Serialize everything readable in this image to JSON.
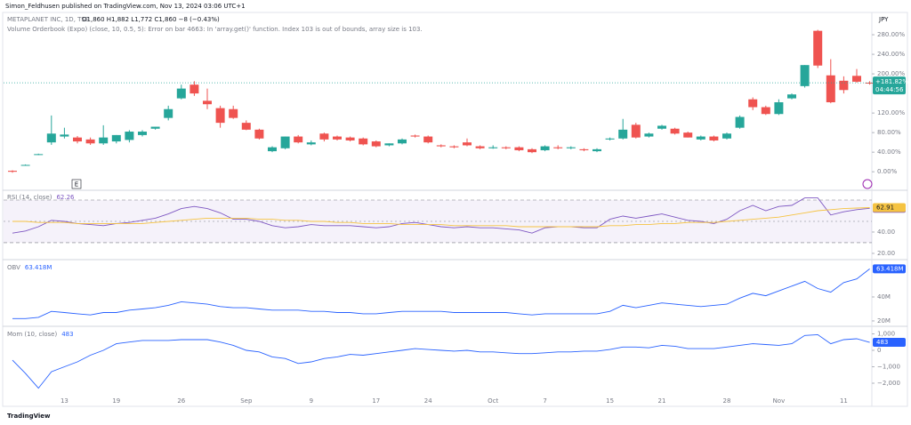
{
  "header": {
    "publisher": "Simon_Feldhusen published on TradingView.com, Nov 13, 2024 03:06 UTC+1",
    "symbol": "METAPLANET INC, 1D, TSE",
    "ohlc": "O1,860 H1,882 L1,772 C1,860 −8 (−0.43%)",
    "indicator_error": "Volume Orderbook (Expo) (close, 10, 0.5, 5): Error on bar 4663: In 'array.get()' function. Index 103 is out of bounds, array size is 103.",
    "currency": "JPY",
    "earnings_marker": "E"
  },
  "chart_data": [
    {
      "type": "candlestick",
      "up_color": "#26a69a",
      "down_color": "#ef5350",
      "categories": [
        null,
        null,
        null,
        null,
        "13",
        null,
        null,
        null,
        "19",
        null,
        null,
        null,
        null,
        "26",
        null,
        null,
        null,
        null,
        "Sep",
        null,
        null,
        null,
        null,
        "9",
        null,
        null,
        null,
        null,
        "17",
        null,
        null,
        null,
        "24",
        null,
        null,
        null,
        null,
        "Oct",
        null,
        null,
        null,
        "7",
        null,
        null,
        null,
        null,
        "15",
        null,
        null,
        null,
        "21",
        null,
        null,
        null,
        null,
        "28",
        null,
        null,
        null,
        "Nov",
        null,
        null,
        null,
        null,
        "11",
        null,
        null
      ],
      "open": [
        2,
        14,
        35,
        60,
        72,
        70,
        66,
        58,
        62,
        65,
        75,
        88,
        110,
        150,
        178,
        145,
        130,
        128,
        100,
        86,
        42,
        48,
        72,
        56,
        78,
        72,
        70,
        68,
        62,
        54,
        58,
        74,
        72,
        54,
        52,
        60,
        52,
        48,
        50,
        50,
        46,
        44,
        50,
        48,
        46,
        42,
        66,
        68,
        96,
        72,
        88,
        88,
        80,
        66,
        72,
        68,
        90,
        148,
        132,
        118,
        150,
        175,
        288,
        197,
        186,
        196,
        182
      ],
      "high": [
        3,
        15,
        37,
        115,
        90,
        73,
        70,
        95,
        75,
        85,
        85,
        92,
        135,
        178,
        185,
        170,
        135,
        135,
        105,
        88,
        52,
        72,
        75,
        64,
        80,
        74,
        72,
        70,
        64,
        58,
        68,
        76,
        74,
        56,
        54,
        68,
        54,
        54,
        52,
        52,
        48,
        54,
        54,
        52,
        48,
        48,
        70,
        108,
        100,
        80,
        96,
        90,
        82,
        74,
        74,
        80,
        115,
        152,
        135,
        148,
        160,
        218,
        290,
        230,
        195,
        210,
        185
      ],
      "low": [
        -2,
        13,
        34,
        55,
        68,
        58,
        55,
        55,
        58,
        60,
        72,
        86,
        105,
        148,
        155,
        128,
        90,
        108,
        85,
        66,
        40,
        46,
        58,
        54,
        62,
        64,
        62,
        54,
        50,
        52,
        56,
        70,
        58,
        50,
        48,
        52,
        46,
        47,
        46,
        42,
        38,
        42,
        46,
        46,
        42,
        40,
        64,
        66,
        68,
        70,
        86,
        76,
        70,
        64,
        62,
        66,
        88,
        126,
        116,
        116,
        148,
        172,
        212,
        140,
        160,
        182,
        178
      ],
      "close": [
        0,
        14,
        36,
        78,
        76,
        62,
        58,
        70,
        75,
        82,
        82,
        92,
        128,
        170,
        160,
        138,
        100,
        110,
        86,
        68,
        50,
        72,
        60,
        60,
        66,
        66,
        64,
        56,
        52,
        58,
        66,
        72,
        60,
        52,
        50,
        54,
        48,
        50,
        48,
        44,
        40,
        52,
        48,
        50,
        44,
        46,
        68,
        86,
        70,
        78,
        94,
        78,
        70,
        72,
        64,
        78,
        112,
        132,
        118,
        142,
        158,
        218,
        217,
        142,
        167,
        184,
        181.82
      ],
      "ylim": [
        -36,
        311
      ],
      "yticks": [
        {
          "value": 0,
          "label": "0.00%"
        },
        {
          "value": 40,
          "label": "40.00%"
        },
        {
          "value": 80,
          "label": "80.00%"
        },
        {
          "value": 120,
          "label": "120.00%"
        },
        {
          "value": 200,
          "label": "200.00%"
        },
        {
          "value": 240,
          "label": "240.00%"
        },
        {
          "value": 280,
          "label": "280.00%"
        }
      ],
      "last_label": {
        "value": 181.82,
        "label": "+181.82%"
      },
      "countdown": "04:44:56"
    },
    {
      "type": "line",
      "ylim": [
        15.8,
        77.5
      ],
      "yticks": [
        {
          "value": 40,
          "label": "40.00"
        },
        {
          "value": 20,
          "label": "20.00"
        }
      ],
      "band": [
        30,
        70
      ],
      "midline": 50,
      "series": [
        {
          "name": "RSI (14, close)",
          "color": "#7e57c2",
          "values": [
            39,
            41,
            45,
            51,
            50,
            48,
            47,
            46,
            48,
            49,
            51,
            53,
            57,
            62,
            64,
            62,
            58,
            52,
            52,
            50,
            46,
            44,
            45,
            47,
            46,
            46,
            46,
            45,
            44,
            45,
            48,
            49,
            47,
            45,
            44,
            45,
            44,
            44,
            43,
            42,
            39,
            44,
            45,
            45,
            44,
            44,
            52,
            55,
            53,
            55,
            57,
            54,
            51,
            50,
            48,
            52,
            60,
            65,
            60,
            64,
            65,
            72,
            72,
            56,
            59,
            61,
            62.26
          ]
        },
        {
          "color": "#f5c342",
          "values": [
            50,
            50,
            49,
            49,
            49,
            48,
            48,
            48,
            48,
            48,
            48,
            49,
            50,
            51,
            52,
            53,
            53,
            53,
            53,
            52,
            52,
            51,
            51,
            50,
            50,
            49,
            49,
            48,
            48,
            48,
            47,
            47,
            47,
            47,
            46,
            46,
            46,
            46,
            46,
            45,
            45,
            45,
            45,
            45,
            45,
            45,
            46,
            46,
            47,
            47,
            48,
            48,
            49,
            49,
            49,
            50,
            51,
            52,
            53,
            54,
            56,
            58,
            60,
            61,
            62,
            62.5,
            62.91
          ]
        }
      ]
    },
    {
      "type": "line",
      "ylim": [
        17,
        68.9
      ],
      "yticks": [
        {
          "value": 40,
          "label": "40M"
        },
        {
          "value": 20,
          "label": "20M"
        }
      ],
      "series": [
        {
          "name": "OBV",
          "color": "#2962ff",
          "values": [
            22,
            22,
            23,
            28,
            27,
            26,
            25,
            27,
            27,
            29,
            30,
            31,
            33,
            36,
            35,
            34,
            32,
            31,
            31,
            30,
            29,
            29,
            29,
            28,
            28,
            27,
            27,
            26,
            26,
            27,
            28,
            28,
            28,
            28,
            27,
            27,
            27,
            27,
            27,
            26,
            25,
            26,
            26,
            26,
            26,
            26,
            28,
            33,
            31,
            33,
            35,
            34,
            33,
            32,
            33,
            34,
            39,
            43,
            41,
            45,
            49,
            53,
            47,
            44,
            52,
            55,
            63.418
          ],
          "last_value_label": "63.418M"
        }
      ]
    },
    {
      "type": "line",
      "ylim": [
        -3405,
        1297
      ],
      "yticks": [
        {
          "value": 1000,
          "label": "1,000"
        },
        0,
        {
          "value": -1000,
          "label": "−1,000"
        },
        {
          "value": -2000,
          "label": "−2,000"
        }
      ],
      "series": [
        {
          "name": "Mom (10, close)",
          "color": "#2962ff",
          "values": [
            -600,
            -1400,
            -2300,
            -1300,
            -1000,
            -700,
            -300,
            0,
            400,
            500,
            600,
            600,
            600,
            650,
            650,
            650,
            500,
            300,
            0,
            -100,
            -400,
            -500,
            -800,
            -700,
            -500,
            -400,
            -250,
            -300,
            -200,
            -100,
            0,
            100,
            50,
            0,
            -50,
            0,
            -100,
            -100,
            -150,
            -200,
            -200,
            -150,
            -100,
            -100,
            -50,
            -50,
            50,
            200,
            200,
            150,
            300,
            250,
            100,
            100,
            100,
            200,
            300,
            400,
            350,
            300,
            400,
            900,
            950,
            400,
            650,
            700,
            483
          ]
        }
      ]
    }
  ],
  "footer": {
    "brand": "TradingView"
  }
}
